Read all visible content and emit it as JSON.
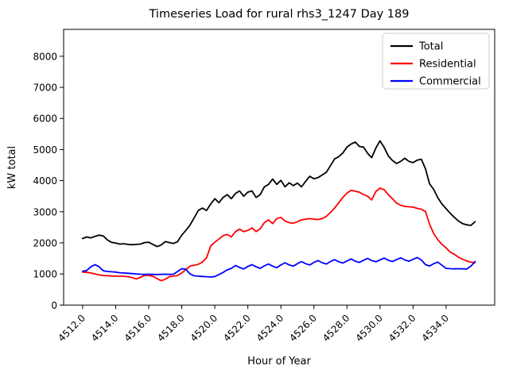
{
  "figure": {
    "title": "Timeseries Load for rural rhs3_1247  Day 189",
    "xlabel": "Hour of Year",
    "ylabel": "kW total",
    "background": "#ffffff",
    "spine_color": "#000000"
  },
  "chart_data": {
    "type": "line",
    "title": "Timeseries Load for rural rhs3_1247  Day 189",
    "xlabel": "Hour of Year",
    "ylabel": "kW total",
    "xlim": [
      4510.85,
      4536.94
    ],
    "ylim": [
      0,
      8865
    ],
    "grid": false,
    "legend": {
      "position": "upper right",
      "edge_color": "#cccccc",
      "entries": [
        "Total",
        "Residential",
        "Commercial"
      ]
    },
    "xticks": {
      "values": [
        4512,
        4514,
        4516,
        4518,
        4520,
        4522,
        4524,
        4526,
        4528,
        4530,
        4532,
        4534
      ],
      "labels": [
        "4512.0",
        "4514.0",
        "4516.0",
        "4518.0",
        "4520.0",
        "4522.0",
        "4524.0",
        "4526.0",
        "4528.0",
        "4530.0",
        "4532.0",
        "4534.0"
      ],
      "rotation": 45
    },
    "yticks": {
      "values": [
        0,
        1000,
        2000,
        3000,
        4000,
        5000,
        6000,
        7000,
        8000
      ],
      "labels": [
        "0",
        "1000",
        "2000",
        "3000",
        "4000",
        "5000",
        "6000",
        "7000",
        "8000"
      ]
    },
    "x": [
      4512.0,
      4512.25,
      4512.5,
      4512.75,
      4513.0,
      4513.25,
      4513.5,
      4513.75,
      4514.0,
      4514.25,
      4514.5,
      4514.75,
      4515.0,
      4515.25,
      4515.5,
      4515.75,
      4516.0,
      4516.25,
      4516.5,
      4516.75,
      4517.0,
      4517.25,
      4517.5,
      4517.75,
      4518.0,
      4518.25,
      4518.5,
      4518.75,
      4519.0,
      4519.25,
      4519.5,
      4519.75,
      4520.0,
      4520.25,
      4520.5,
      4520.75,
      4521.0,
      4521.25,
      4521.5,
      4521.75,
      4522.0,
      4522.25,
      4522.5,
      4522.75,
      4523.0,
      4523.25,
      4523.5,
      4523.75,
      4524.0,
      4524.25,
      4524.5,
      4524.75,
      4525.0,
      4525.25,
      4525.5,
      4525.75,
      4526.0,
      4526.25,
      4526.5,
      4526.75,
      4527.0,
      4527.25,
      4527.5,
      4527.75,
      4528.0,
      4528.25,
      4528.5,
      4528.75,
      4529.0,
      4529.25,
      4529.5,
      4529.75,
      4530.0,
      4530.25,
      4530.5,
      4530.75,
      4531.0,
      4531.25,
      4531.5,
      4531.75,
      4532.0,
      4532.25,
      4532.5,
      4532.75,
      4533.0,
      4533.25,
      4533.5,
      4533.75,
      4534.0,
      4534.25,
      4534.5,
      4534.75,
      4535.0,
      4535.25,
      4535.5,
      4535.75
    ],
    "series": [
      {
        "name": "Total",
        "color": "#000000",
        "values": [
          2140,
          2190,
          2160,
          2210,
          2250,
          2220,
          2090,
          2020,
          1990,
          1960,
          1970,
          1950,
          1940,
          1950,
          1960,
          2010,
          2020,
          1950,
          1880,
          1930,
          2040,
          2010,
          1980,
          2040,
          2250,
          2400,
          2570,
          2800,
          3040,
          3120,
          3040,
          3250,
          3420,
          3290,
          3460,
          3550,
          3420,
          3590,
          3670,
          3500,
          3630,
          3670,
          3460,
          3550,
          3800,
          3880,
          4050,
          3880,
          4010,
          3800,
          3930,
          3840,
          3920,
          3800,
          3980,
          4140,
          4060,
          4100,
          4180,
          4270,
          4480,
          4700,
          4770,
          4890,
          5080,
          5180,
          5240,
          5100,
          5080,
          4880,
          4740,
          5050,
          5280,
          5070,
          4800,
          4650,
          4550,
          4620,
          4720,
          4620,
          4580,
          4660,
          4690,
          4380,
          3900,
          3720,
          3450,
          3250,
          3100,
          2950,
          2820,
          2700,
          2620,
          2580,
          2560,
          2680
        ]
      },
      {
        "name": "Residential",
        "color": "#ff0000",
        "values": [
          1060,
          1050,
          1030,
          1000,
          970,
          950,
          945,
          935,
          930,
          930,
          925,
          910,
          880,
          840,
          890,
          955,
          950,
          930,
          850,
          780,
          830,
          915,
          930,
          950,
          1030,
          1140,
          1250,
          1280,
          1310,
          1380,
          1520,
          1900,
          2020,
          2120,
          2230,
          2270,
          2190,
          2360,
          2440,
          2360,
          2400,
          2480,
          2360,
          2450,
          2650,
          2740,
          2620,
          2780,
          2820,
          2700,
          2650,
          2630,
          2680,
          2740,
          2760,
          2780,
          2760,
          2750,
          2780,
          2850,
          2980,
          3120,
          3290,
          3460,
          3600,
          3690,
          3660,
          3630,
          3550,
          3500,
          3380,
          3650,
          3760,
          3710,
          3550,
          3420,
          3280,
          3210,
          3170,
          3160,
          3150,
          3110,
          3080,
          3010,
          2600,
          2300,
          2100,
          1950,
          1840,
          1700,
          1630,
          1540,
          1470,
          1420,
          1380,
          1360
        ]
      },
      {
        "name": "Commercial",
        "color": "#0000ff",
        "values": [
          1090,
          1110,
          1230,
          1300,
          1230,
          1100,
          1080,
          1070,
          1060,
          1040,
          1030,
          1020,
          1010,
          1000,
          990,
          985,
          990,
          985,
          980,
          985,
          990,
          985,
          990,
          1080,
          1170,
          1150,
          1000,
          940,
          930,
          920,
          910,
          900,
          920,
          980,
          1050,
          1130,
          1180,
          1270,
          1210,
          1160,
          1240,
          1300,
          1230,
          1180,
          1260,
          1320,
          1250,
          1200,
          1290,
          1360,
          1290,
          1250,
          1330,
          1400,
          1330,
          1290,
          1370,
          1430,
          1360,
          1320,
          1400,
          1460,
          1390,
          1350,
          1420,
          1480,
          1410,
          1370,
          1440,
          1500,
          1430,
          1390,
          1450,
          1510,
          1440,
          1400,
          1460,
          1520,
          1450,
          1410,
          1470,
          1530,
          1450,
          1300,
          1255,
          1330,
          1382,
          1280,
          1180,
          1170,
          1165,
          1170,
          1165,
          1160,
          1250,
          1400
        ]
      }
    ]
  }
}
